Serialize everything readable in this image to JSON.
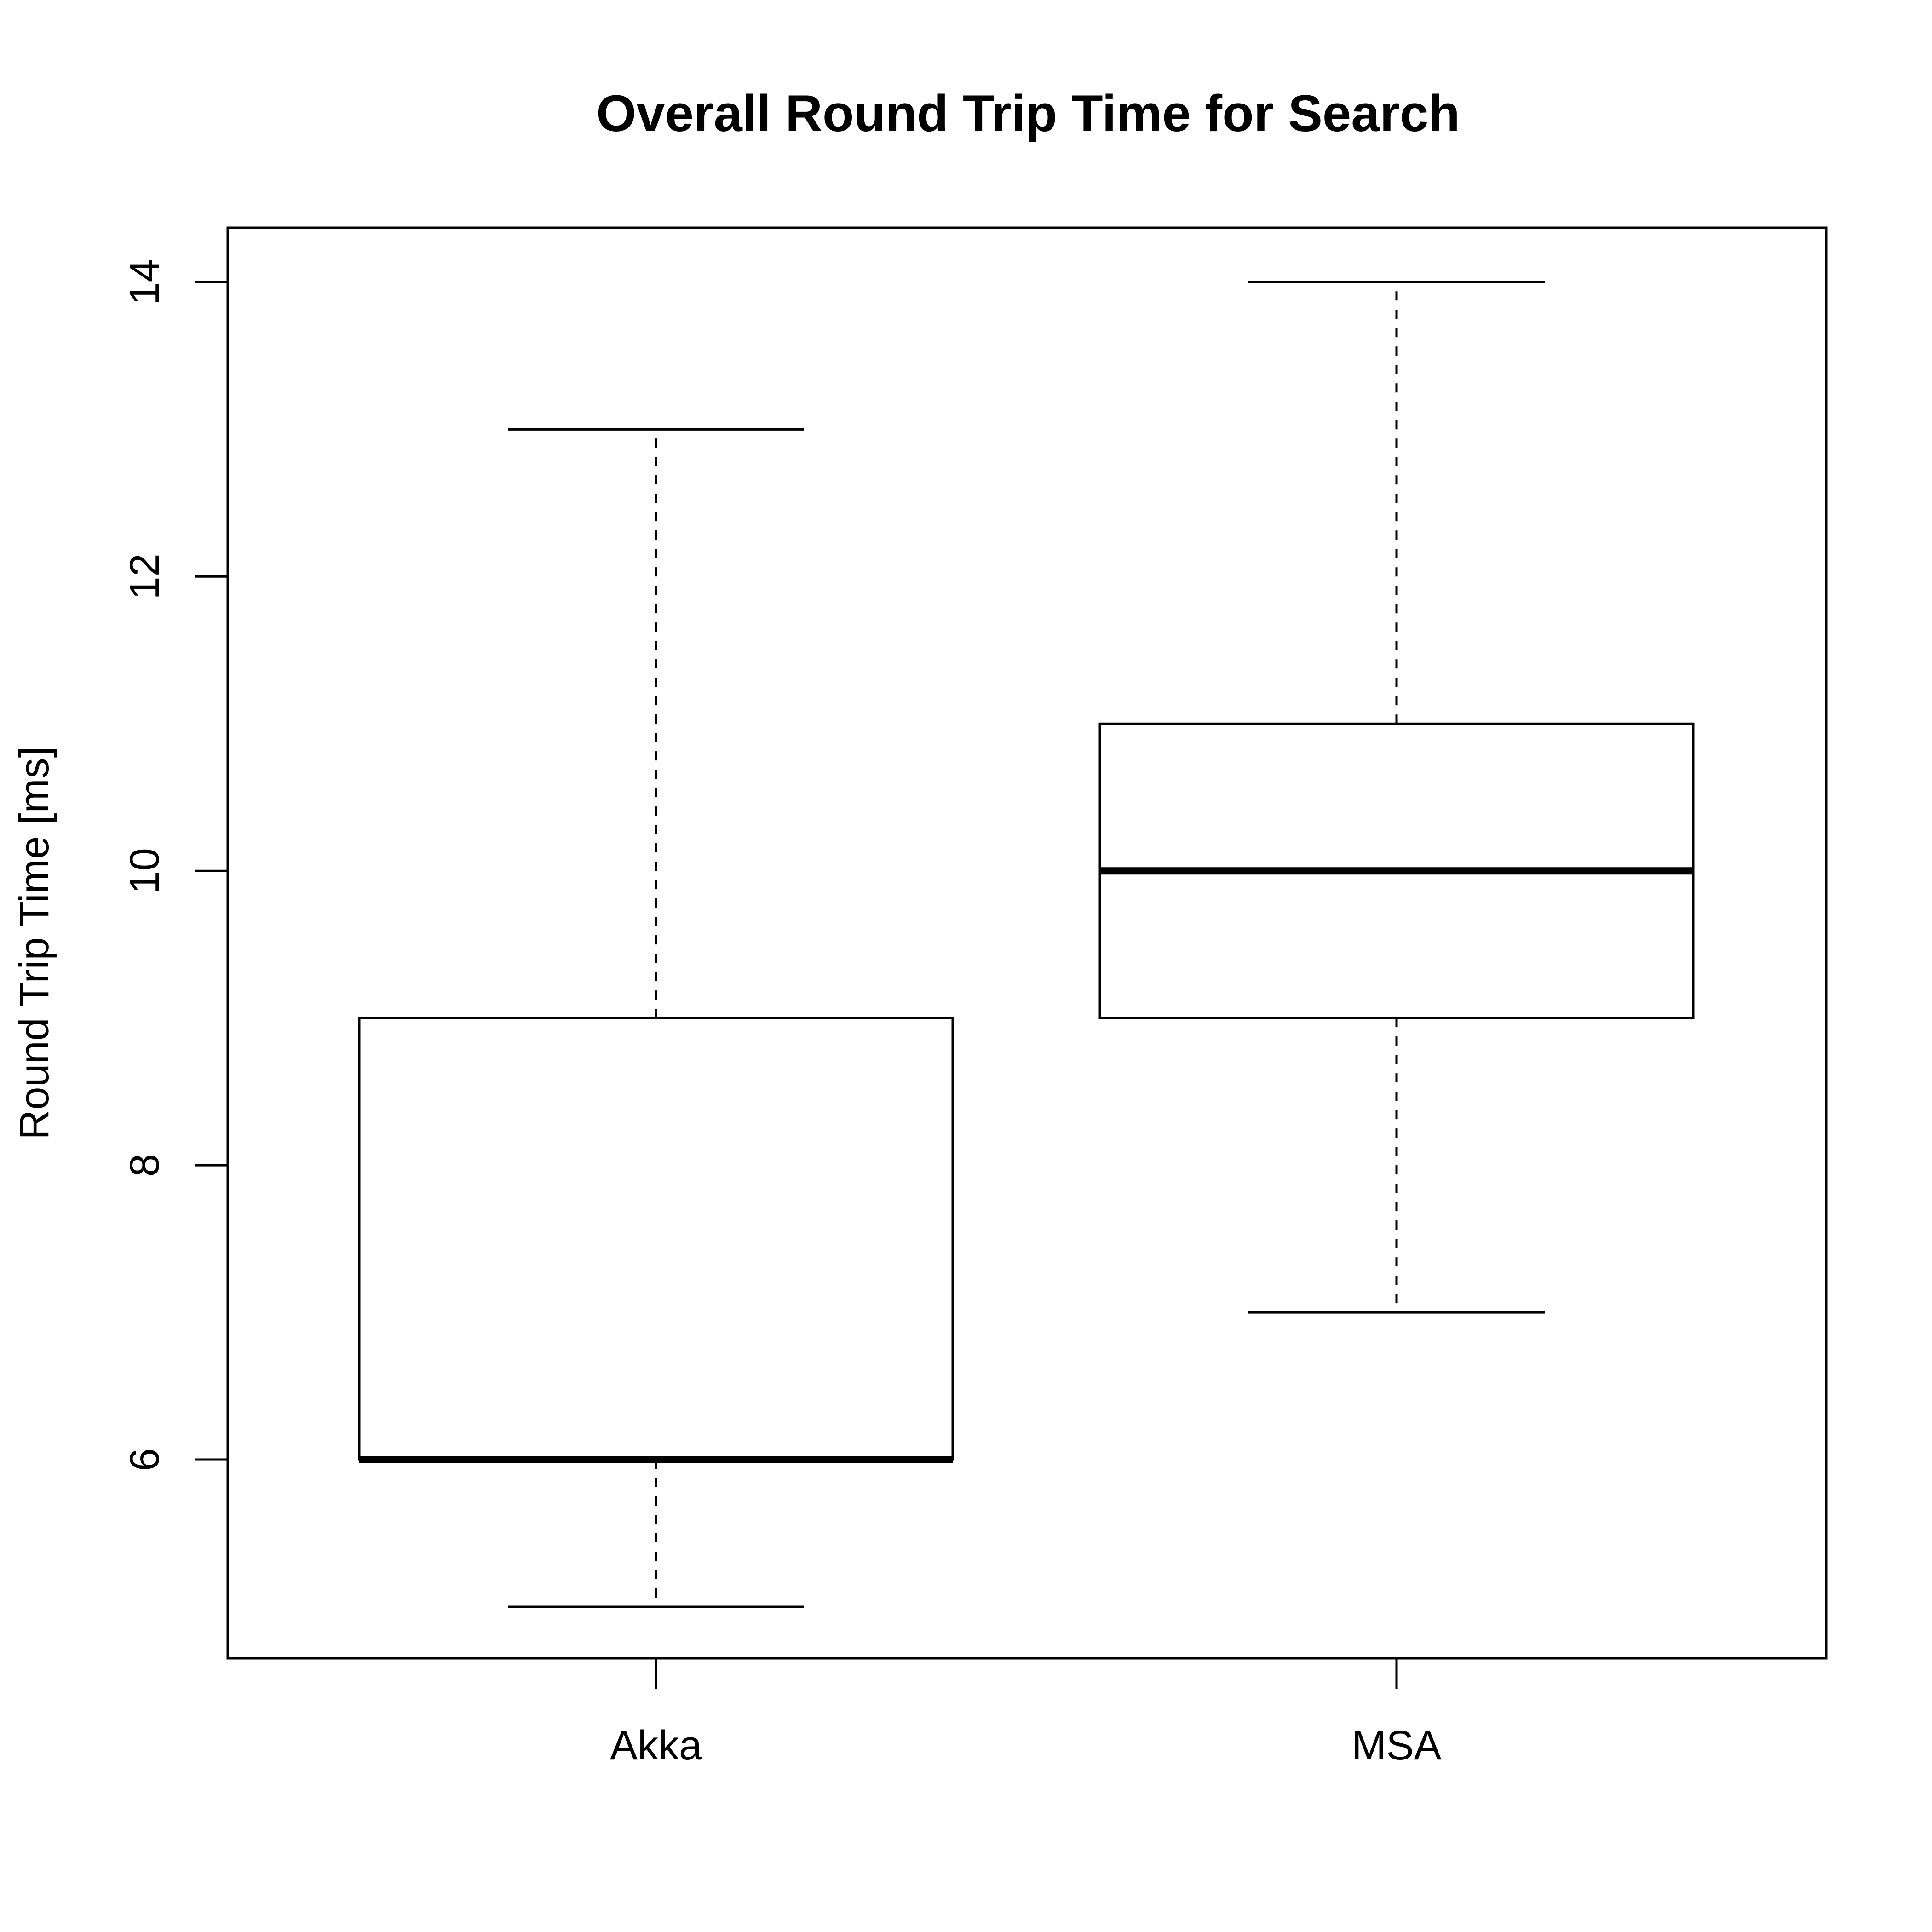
{
  "chart_data": {
    "type": "box",
    "title": "Overall Round Trip Time for Search",
    "xlabel": "",
    "ylabel": "Round Trip Time [ms]",
    "categories": [
      "Akka",
      "MSA"
    ],
    "boxes": [
      {
        "category": "Akka",
        "whisker_low": 5,
        "q1": 6,
        "median": 6,
        "q3": 9,
        "whisker_high": 13
      },
      {
        "category": "MSA",
        "whisker_low": 7,
        "q1": 9,
        "median": 10,
        "q3": 11,
        "whisker_high": 14
      }
    ],
    "ylim": [
      4.65,
      14.37
    ],
    "yticks": [
      6,
      8,
      10,
      12,
      14
    ],
    "grid": false,
    "legend": "none"
  }
}
